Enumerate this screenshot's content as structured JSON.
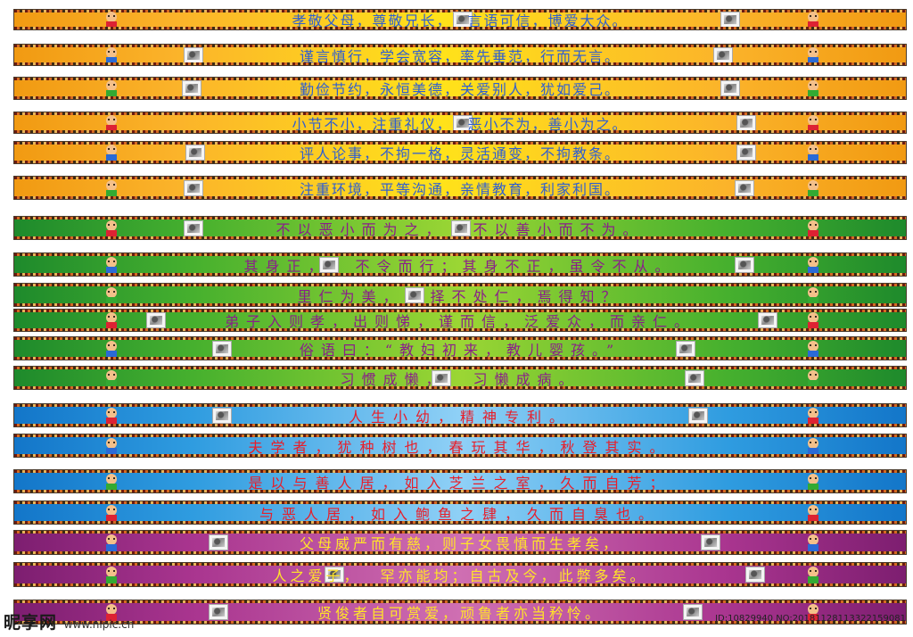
{
  "banners": [
    {
      "theme": "orange",
      "text": "孝敬父母，尊敬兄长，　 言语可信，博爱大众。"
    },
    {
      "theme": "orange",
      "text": "谨言慎行，学会宽容，率先垂范，行而无言。"
    },
    {
      "theme": "orange",
      "text": "勤俭节约，永恒美德，关爱别人，犹如爱己。"
    },
    {
      "theme": "orange",
      "text": "小节不小，注重礼仪，　 恶小不为，善小为之。"
    },
    {
      "theme": "orange",
      "text": "评人论事，不拘一格，灵活通变，不拘教条。"
    },
    {
      "theme": "orange",
      "text": "注重环境，平等沟通，亲情教育，利家利国。"
    },
    {
      "theme": "green",
      "text": "不以恶小而为之，　 不以善小而不为。"
    },
    {
      "theme": "green",
      "text": "其身正，　 不令而行；其身不正，虽令不从。"
    },
    {
      "theme": "green",
      "text": "里仁为美，　 择不处仁，焉得知？"
    },
    {
      "theme": "green",
      "text": "弟子入则孝，出则悌，谨而信，泛爱众，而亲仁。"
    },
    {
      "theme": "green",
      "text": "俗语曰：“教妇初来，教儿婴孩。”"
    },
    {
      "theme": "green",
      "text": "习惯成懒，　 习懒成病。"
    },
    {
      "theme": "blue",
      "text": "人生小幼，精神专利。"
    },
    {
      "theme": "blue",
      "text": "夫学者，犹种树也，春玩其华，秋登其实。"
    },
    {
      "theme": "blue",
      "text": "是以与善人居，如入芝兰之室，久而自芳；"
    },
    {
      "theme": "blue",
      "text": "与恶人居，如入鲍鱼之肆，久而自臭也。"
    },
    {
      "theme": "purple",
      "text": "父母威严而有慈，则子女畏慎而生孝矣，"
    },
    {
      "theme": "purple",
      "text": "人之爱子，　 罕亦能均；自古及今，此弊多矣。"
    },
    {
      "theme": "purple",
      "text": "贤俊者自可赏爱，顽鲁者亦当矜怜。"
    }
  ],
  "watermark": {
    "site": "昵享网",
    "url": "www.nipic.cn",
    "id_text": "ID:10829940 NO:20181128113322159081"
  }
}
